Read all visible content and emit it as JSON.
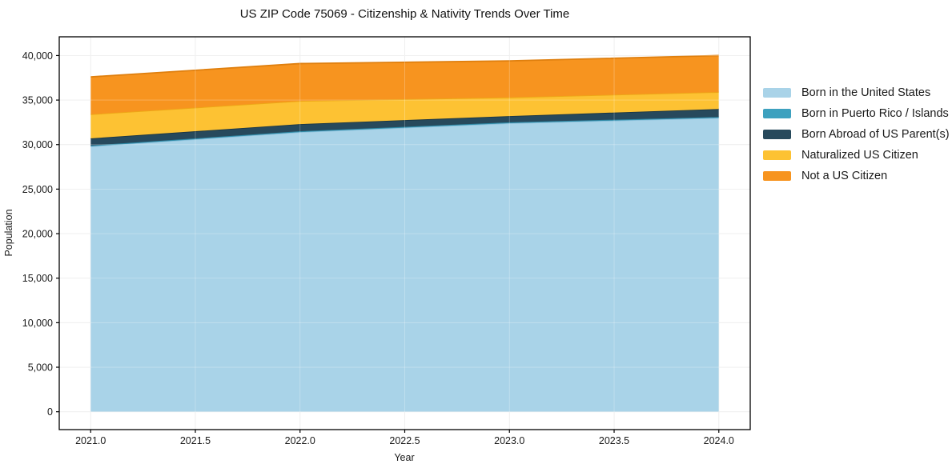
{
  "title": "US ZIP Code 75069 - Citizenship & Nativity Trends Over Time",
  "chart_data": {
    "type": "area",
    "stacked": true,
    "title": "US ZIP Code 75069 - Citizenship & Nativity Trends Over Time",
    "xlabel": "Year",
    "ylabel": "Population",
    "x": [
      2021,
      2022,
      2023,
      2024
    ],
    "series": [
      {
        "name": "Born in the United States",
        "color": "#a9d3e8",
        "edge_color": "#8cc1dc",
        "values": [
          29800,
          31400,
          32400,
          33000
        ]
      },
      {
        "name": "Born in Puerto Rico / Islands",
        "color": "#3da1bf",
        "edge_color": "#2e87a3",
        "values": [
          100,
          100,
          100,
          100
        ]
      },
      {
        "name": "Born Abroad of US Parent(s)",
        "color": "#27495c",
        "edge_color": "#1b3644",
        "values": [
          800,
          800,
          700,
          900
        ]
      },
      {
        "name": "Naturalized US Citizen",
        "color": "#fdc233",
        "edge_color": "#eda816",
        "values": [
          2700,
          2600,
          2100,
          1900
        ]
      },
      {
        "name": "Not a US Citizen",
        "color": "#f7941f",
        "edge_color": "#df7f0e",
        "values": [
          4200,
          4200,
          4100,
          4100
        ]
      }
    ],
    "xlim": [
      2020.85,
      2024.15
    ],
    "ylim": [
      -2005,
      42105
    ],
    "xticks": [
      2021.0,
      2021.5,
      2022.0,
      2022.5,
      2023.0,
      2023.5,
      2024.0
    ],
    "yticks": [
      0,
      5000,
      10000,
      15000,
      20000,
      25000,
      30000,
      35000,
      40000
    ],
    "grid": true,
    "legend_position": "right outside",
    "spine_color": "#000000",
    "grid_color": "#e8e8e8",
    "tick_label_color": "#1a1a1a"
  }
}
